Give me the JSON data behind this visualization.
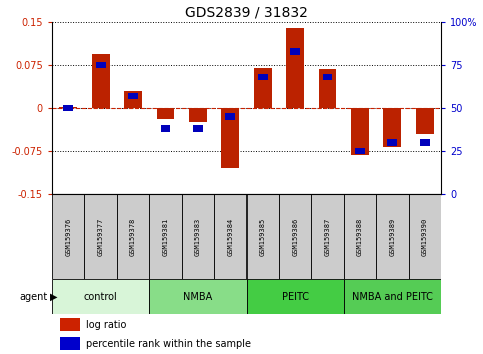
{
  "title": "GDS2839 / 31832",
  "samples": [
    "GSM159376",
    "GSM159377",
    "GSM159378",
    "GSM159381",
    "GSM159383",
    "GSM159384",
    "GSM159385",
    "GSM159386",
    "GSM159387",
    "GSM159388",
    "GSM159389",
    "GSM159390"
  ],
  "log_ratio": [
    0.002,
    0.095,
    0.03,
    -0.02,
    -0.025,
    -0.105,
    0.07,
    0.14,
    0.068,
    -0.082,
    -0.068,
    -0.045
  ],
  "percentile": [
    50,
    75,
    57,
    38,
    38,
    45,
    68,
    83,
    68,
    25,
    30,
    30
  ],
  "groups": [
    {
      "label": "control",
      "start": 0,
      "end": 3,
      "color": "#d8f5d8"
    },
    {
      "label": "NMBA",
      "start": 3,
      "end": 6,
      "color": "#88dd88"
    },
    {
      "label": "PEITC",
      "start": 6,
      "end": 9,
      "color": "#44cc44"
    },
    {
      "label": "NMBA and PEITC",
      "start": 9,
      "end": 12,
      "color": "#55cc55"
    }
  ],
  "ylim": [
    -0.15,
    0.15
  ],
  "yticks_left": [
    -0.15,
    -0.075,
    0,
    0.075,
    0.15
  ],
  "yticks_right": [
    0,
    25,
    50,
    75,
    100
  ],
  "bar_color": "#bb2200",
  "dot_color": "#0000bb",
  "bg_color": "#ffffff",
  "zero_line_color": "#cc2200",
  "tick_label_color_left": "#cc2200",
  "tick_label_color_right": "#0000cc",
  "sample_box_color": "#cccccc",
  "legend_red_color": "#cc2200",
  "legend_blue_color": "#0000cc"
}
